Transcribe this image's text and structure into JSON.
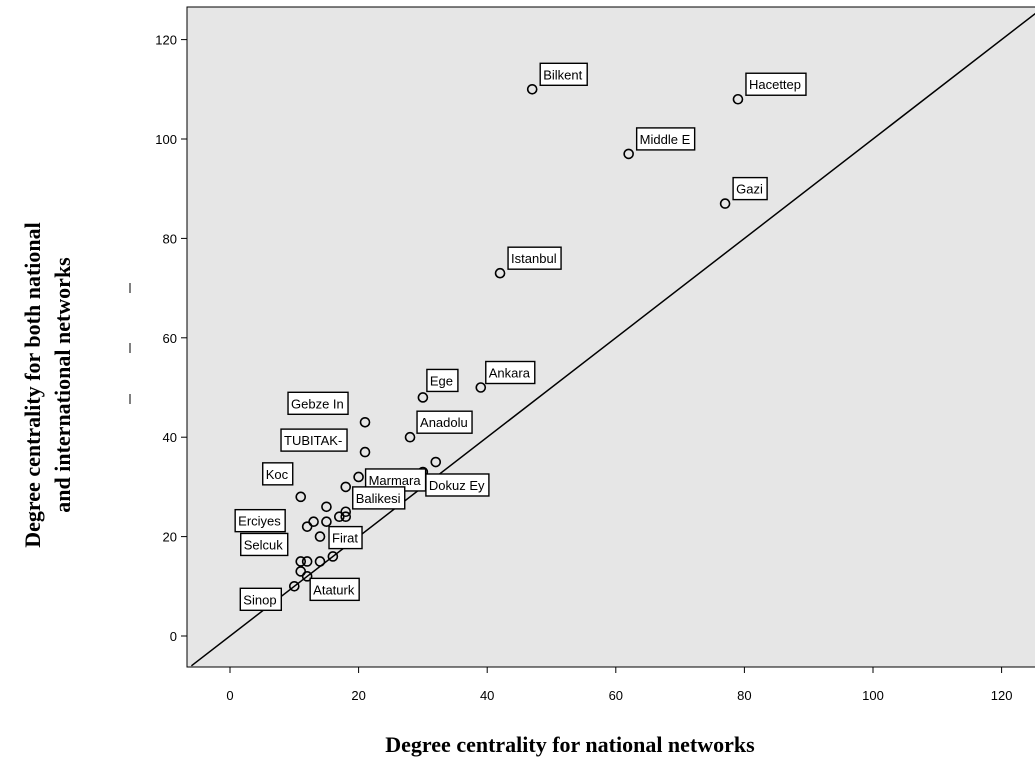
{
  "chart_data": {
    "type": "scatter",
    "title": "",
    "xlabel": "Degree centrality for national networks",
    "ylabel_lines": [
      "Degree centrality for both national",
      "and international networks"
    ],
    "xlim": [
      -6,
      126
    ],
    "ylim": [
      -7,
      127
    ],
    "x_ticks": [
      0,
      20,
      40,
      60,
      80,
      100,
      120
    ],
    "y_ticks": [
      0,
      20,
      40,
      60,
      80,
      100,
      120
    ],
    "reference_line": "y = x",
    "plot_background": "#e6e6e6",
    "marker_color": "#000000",
    "labeled_points": [
      {
        "label": "Bilkent",
        "x": 47,
        "y": 110
      },
      {
        "label": "Hacettep",
        "x": 79,
        "y": 108
      },
      {
        "label": "Middle E",
        "x": 62,
        "y": 97
      },
      {
        "label": "Gazi",
        "x": 77,
        "y": 87
      },
      {
        "label": "Istanbul",
        "x": 42,
        "y": 73
      },
      {
        "label": "Ankara",
        "x": 39,
        "y": 50
      },
      {
        "label": "Ege",
        "x": 30,
        "y": 48
      },
      {
        "label": "Gebze In",
        "x": 21,
        "y": 43
      },
      {
        "label": "Anadolu",
        "x": 28,
        "y": 40
      },
      {
        "label": "TUBITAK-",
        "x": 21,
        "y": 37
      },
      {
        "label": "Marmara",
        "x": 20,
        "y": 32
      },
      {
        "label": "Dokuz Ey",
        "x": 30,
        "y": 33
      },
      {
        "label": "Koc",
        "x": 11,
        "y": 28
      },
      {
        "label": "Balikesi",
        "x": 18,
        "y": 30
      },
      {
        "label": "Erciyes",
        "x": 12,
        "y": 22
      },
      {
        "label": "Firat",
        "x": 14,
        "y": 20
      },
      {
        "label": "Selcuk",
        "x": 11,
        "y": 15
      },
      {
        "label": "Ataturk",
        "x": 12,
        "y": 12
      },
      {
        "label": "Sinop",
        "x": 10,
        "y": 10
      }
    ],
    "other_points": [
      {
        "x": 32,
        "y": 35
      },
      {
        "x": 15,
        "y": 26
      },
      {
        "x": 18,
        "y": 25
      },
      {
        "x": 18,
        "y": 24
      },
      {
        "x": 17,
        "y": 24
      },
      {
        "x": 15,
        "y": 23
      },
      {
        "x": 13,
        "y": 23
      },
      {
        "x": 16,
        "y": 16
      },
      {
        "x": 14,
        "y": 15
      },
      {
        "x": 12,
        "y": 15
      },
      {
        "x": 11,
        "y": 13
      }
    ]
  }
}
